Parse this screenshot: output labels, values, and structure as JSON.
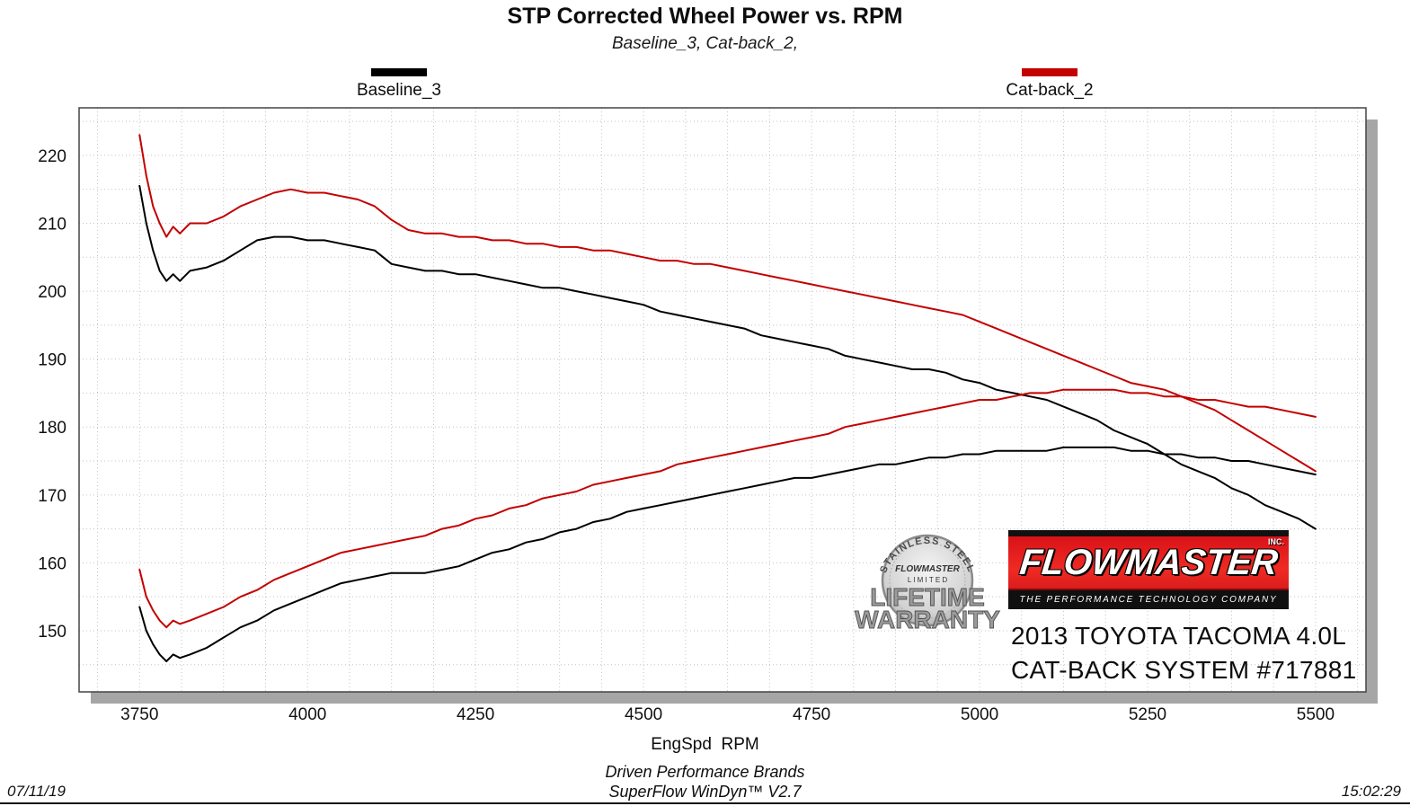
{
  "chart_data": {
    "type": "line",
    "title": "STP Corrected Wheel Power vs. RPM",
    "subtitle": "Baseline_3, Cat-back_2,",
    "xlabel": "EngSpd  RPM",
    "ylabel": "",
    "xlim": [
      3660,
      5575
    ],
    "ylim": [
      141,
      227
    ],
    "xticks": [
      3750,
      4000,
      4250,
      4500,
      4750,
      5000,
      5250,
      5500
    ],
    "yticks": [
      150,
      160,
      170,
      180,
      190,
      200,
      210,
      220
    ],
    "grid": {
      "x_minor_step": 62.5,
      "y_minor_step": 5,
      "style": "dotted"
    },
    "legend_position": "top",
    "x": [
      3750,
      3760,
      3770,
      3780,
      3790,
      3800,
      3810,
      3825,
      3850,
      3875,
      3900,
      3925,
      3950,
      3975,
      4000,
      4025,
      4050,
      4075,
      4100,
      4125,
      4150,
      4175,
      4200,
      4225,
      4250,
      4275,
      4300,
      4325,
      4350,
      4375,
      4400,
      4425,
      4450,
      4475,
      4500,
      4525,
      4550,
      4575,
      4600,
      4625,
      4650,
      4675,
      4700,
      4725,
      4750,
      4775,
      4800,
      4825,
      4850,
      4875,
      4900,
      4925,
      4950,
      4975,
      5000,
      5025,
      5050,
      5075,
      5100,
      5125,
      5150,
      5175,
      5200,
      5225,
      5250,
      5275,
      5300,
      5325,
      5350,
      5375,
      5400,
      5425,
      5450,
      5475,
      5500
    ],
    "series": [
      {
        "name": "Baseline_3",
        "color": "#000000",
        "upper": [
          215.5,
          210,
          206,
          203,
          201.5,
          202.5,
          201.5,
          203,
          203.5,
          204.5,
          206,
          207.5,
          208,
          208,
          207.5,
          207.5,
          207,
          206.5,
          206,
          204,
          203.5,
          203,
          203,
          202.5,
          202.5,
          202,
          201.5,
          201,
          200.5,
          200.5,
          200,
          199.5,
          199,
          198.5,
          198,
          197,
          196.5,
          196,
          195.5,
          195,
          194.5,
          193.5,
          193,
          192.5,
          192,
          191.5,
          190.5,
          190,
          189.5,
          189,
          188.5,
          188.5,
          188,
          187,
          186.5,
          185.5,
          185,
          184.5,
          184,
          183,
          182,
          181,
          179.5,
          178.5,
          177.5,
          176,
          174.5,
          173.5,
          172.5,
          171,
          170,
          168.5,
          167.5,
          166.5,
          165
        ],
        "lower": [
          153.5,
          150,
          148,
          146.5,
          145.5,
          146.5,
          146,
          146.5,
          147.5,
          149,
          150.5,
          151.5,
          153,
          154,
          155,
          156,
          157,
          157.5,
          158,
          158.5,
          158.5,
          158.5,
          159,
          159.5,
          160.5,
          161.5,
          162,
          163,
          163.5,
          164.5,
          165,
          166,
          166.5,
          167.5,
          168,
          168.5,
          169,
          169.5,
          170,
          170.5,
          171,
          171.5,
          172,
          172.5,
          172.5,
          173,
          173.5,
          174,
          174.5,
          174.5,
          175,
          175.5,
          175.5,
          176,
          176,
          176.5,
          176.5,
          176.5,
          176.5,
          177,
          177,
          177,
          177,
          176.5,
          176.5,
          176,
          176,
          175.5,
          175.5,
          175,
          175,
          174.5,
          174,
          173.5,
          173
        ]
      },
      {
        "name": "Cat-back_2",
        "color": "#c40000",
        "upper": [
          223,
          217,
          212.5,
          210,
          208,
          209.5,
          208.5,
          210,
          210,
          211,
          212.5,
          213.5,
          214.5,
          215,
          214.5,
          214.5,
          214,
          213.5,
          212.5,
          210.5,
          209,
          208.5,
          208.5,
          208,
          208,
          207.5,
          207.5,
          207,
          207,
          206.5,
          206.5,
          206,
          206,
          205.5,
          205,
          204.5,
          204.5,
          204,
          204,
          203.5,
          203,
          202.5,
          202,
          201.5,
          201,
          200.5,
          200,
          199.5,
          199,
          198.5,
          198,
          197.5,
          197,
          196.5,
          195.5,
          194.5,
          193.5,
          192.5,
          191.5,
          190.5,
          189.5,
          188.5,
          187.5,
          186.5,
          186,
          185.5,
          184.5,
          183.5,
          182.5,
          181,
          179.5,
          178,
          176.5,
          175,
          173.5
        ],
        "lower": [
          159,
          155,
          153,
          151.5,
          150.5,
          151.5,
          151,
          151.5,
          152.5,
          153.5,
          155,
          156,
          157.5,
          158.5,
          159.5,
          160.5,
          161.5,
          162,
          162.5,
          163,
          163.5,
          164,
          165,
          165.5,
          166.5,
          167,
          168,
          168.5,
          169.5,
          170,
          170.5,
          171.5,
          172,
          172.5,
          173,
          173.5,
          174.5,
          175,
          175.5,
          176,
          176.5,
          177,
          177.5,
          178,
          178.5,
          179,
          180,
          180.5,
          181,
          181.5,
          182,
          182.5,
          183,
          183.5,
          184,
          184,
          184.5,
          185,
          185,
          185.5,
          185.5,
          185.5,
          185.5,
          185,
          185,
          184.5,
          184.5,
          184,
          184,
          183.5,
          183,
          183,
          182.5,
          182,
          181.5
        ]
      }
    ]
  },
  "overlay": {
    "badge": {
      "arc": "STAINLESS STEEL",
      "brand": "FLOWMASTER",
      "limited": "L I M I T E D",
      "big1": "LIFETIME",
      "big2": "WARRANTY"
    },
    "logo": {
      "name": "FLOWMASTER",
      "inc": "INC.",
      "tagline": "THE PERFORMANCE TECHNOLOGY COMPANY"
    },
    "vehicle_line1": "2013 TOYOTA TACOMA 4.0L",
    "vehicle_line2": "CAT-BACK SYSTEM #717881"
  },
  "footer": {
    "brand_line": "Driven Performance Brands",
    "software_line": "SuperFlow WinDyn™ V2.7",
    "date": "07/11/19",
    "time": "15:02:29"
  }
}
